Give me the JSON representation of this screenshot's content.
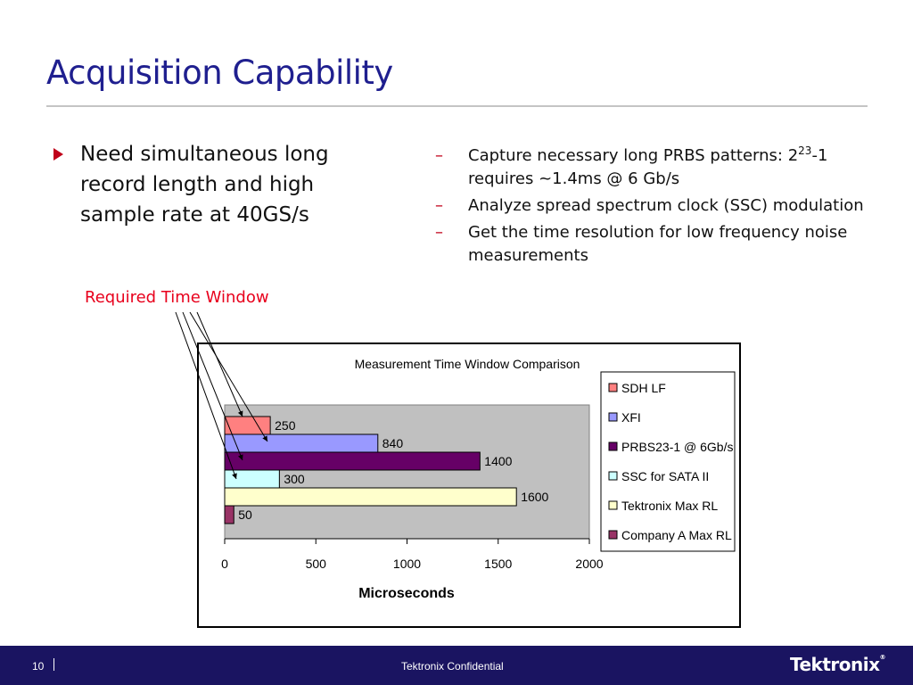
{
  "slide": {
    "title": "Acquisition Capability",
    "main_bullet": "Need simultaneous long record length and high sample rate at 40GS/s",
    "sub_bullets": [
      {
        "pre": "Capture necessary long PRBS patterns: 2",
        "sup": "23",
        "post": "-1 requires ~1.4ms @ 6 Gb/s"
      },
      {
        "pre": "Analyze spread spectrum clock (SSC) modulation",
        "sup": "",
        "post": ""
      },
      {
        "pre": "Get the time resolution for low frequency noise measurements",
        "sup": "",
        "post": ""
      }
    ],
    "dash": "–",
    "callout": "Required Time Window"
  },
  "footer": {
    "page_number": "10",
    "confidential": "Tektronix Confidential",
    "logo": "Tektronix"
  },
  "colors": {
    "title": "#1f1f8f",
    "bullet_marker": "#c0001a",
    "callout": "#e8001c",
    "footer_bg": "#1a1461",
    "plot_bg": "#c0c0c0"
  },
  "chart_data": {
    "type": "bar",
    "orientation": "horizontal",
    "title": "Measurement Time Window Comparison",
    "xlabel": "Microseconds",
    "ylabel": "",
    "xlim": [
      0,
      2000
    ],
    "xticks": [
      0,
      500,
      1000,
      1500,
      2000
    ],
    "grid": false,
    "legend_position": "right",
    "series": [
      {
        "name": "SDH LF",
        "value": 250,
        "color": "#ff8080"
      },
      {
        "name": "XFI",
        "value": 840,
        "color": "#9999ff"
      },
      {
        "name": "PRBS23-1 @ 6Gb/s",
        "value": 1400,
        "color": "#660066"
      },
      {
        "name": "SSC for SATA II",
        "value": 300,
        "color": "#ccffff"
      },
      {
        "name": "Tektronix Max RL",
        "value": 1600,
        "color": "#ffffcc"
      },
      {
        "name": "Company A Max RL",
        "value": 50,
        "color": "#993366"
      }
    ]
  }
}
